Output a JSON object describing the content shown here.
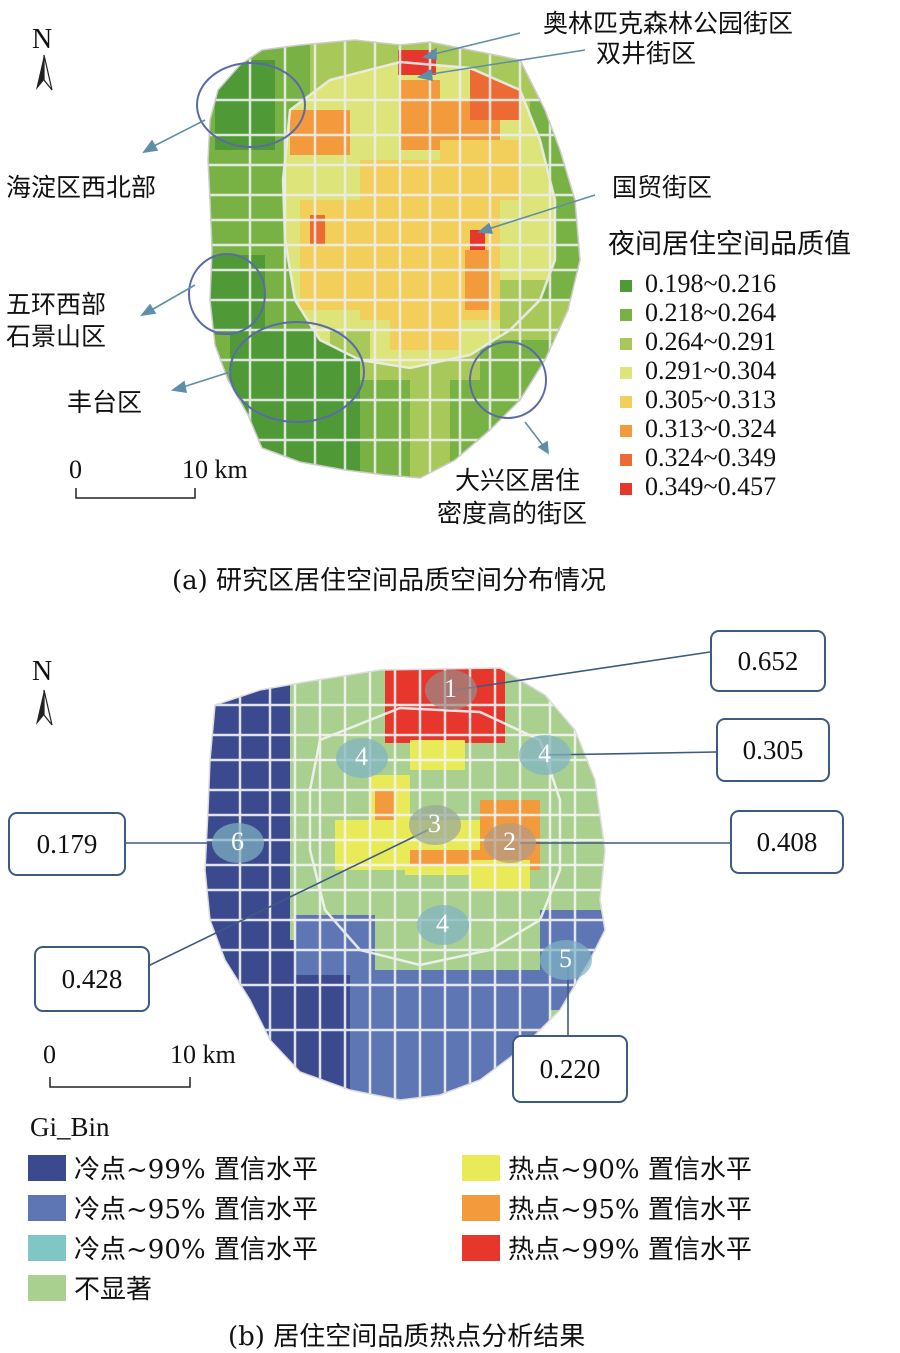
{
  "map_a": {
    "north": "N",
    "annotations": {
      "olympic": "奥林匹克森林公园街区",
      "shuangjing": "双井街区",
      "haidian": "海淀区西北部",
      "guomao": "国贸街区",
      "wuhuan_line1": "五环西部",
      "wuhuan_line2": "石景山区",
      "fengtai": "丰台区",
      "daxing_line1": "大兴区居住",
      "daxing_line2": "密度高的街区"
    },
    "scale": {
      "zero": "0",
      "ten": "10 km"
    },
    "legend": {
      "title": "夜间居住空间品质值",
      "classes": [
        {
          "label": "0.198~0.216",
          "color": "#4f9a37"
        },
        {
          "label": "0.218~0.264",
          "color": "#79b244"
        },
        {
          "label": "0.264~0.291",
          "color": "#a8c95a"
        },
        {
          "label": "0.291~0.304",
          "color": "#dde47a"
        },
        {
          "label": "0.305~0.313",
          "color": "#f2cf5b"
        },
        {
          "label": "0.313~0.324",
          "color": "#f39a3c"
        },
        {
          "label": "0.324~0.349",
          "color": "#ec6b35"
        },
        {
          "label": "0.349~0.457",
          "color": "#e7362c"
        }
      ]
    },
    "caption": "(a) 研究区居住空间品质空间分布情况"
  },
  "map_b": {
    "north": "N",
    "scale": {
      "zero": "0",
      "ten": "10 km"
    },
    "clusters": [
      {
        "id": "1",
        "value": "0.652"
      },
      {
        "id": "4",
        "value": "0.305"
      },
      {
        "id": "2",
        "value": "0.408"
      },
      {
        "id": "6",
        "value": "0.179"
      },
      {
        "id": "3",
        "value": "0.428"
      },
      {
        "id": "5",
        "value": "0.220"
      }
    ],
    "cluster_labels": {
      "c1": "1",
      "c4a": "4",
      "c4b": "4",
      "c4c": "4",
      "c3": "3",
      "c2": "2",
      "c6": "6",
      "c5": "5"
    },
    "legend": {
      "title": "Gi_Bin",
      "items": [
        {
          "label": "冷点~99% 置信水平",
          "color": "#3b4a8e"
        },
        {
          "label": "冷点~95% 置信水平",
          "color": "#5f76b4"
        },
        {
          "label": "冷点~90% 置信水平",
          "color": "#7fc6c4"
        },
        {
          "label": "不显著",
          "color": "#a9d08e"
        },
        {
          "label": "热点~90% 置信水平",
          "color": "#e9ea58"
        },
        {
          "label": "热点~95% 置信水平",
          "color": "#f39a3c"
        },
        {
          "label": "热点~99% 置信水平",
          "color": "#e7362c"
        }
      ]
    },
    "caption": "(b) 居住空间品质热点分析结果"
  }
}
